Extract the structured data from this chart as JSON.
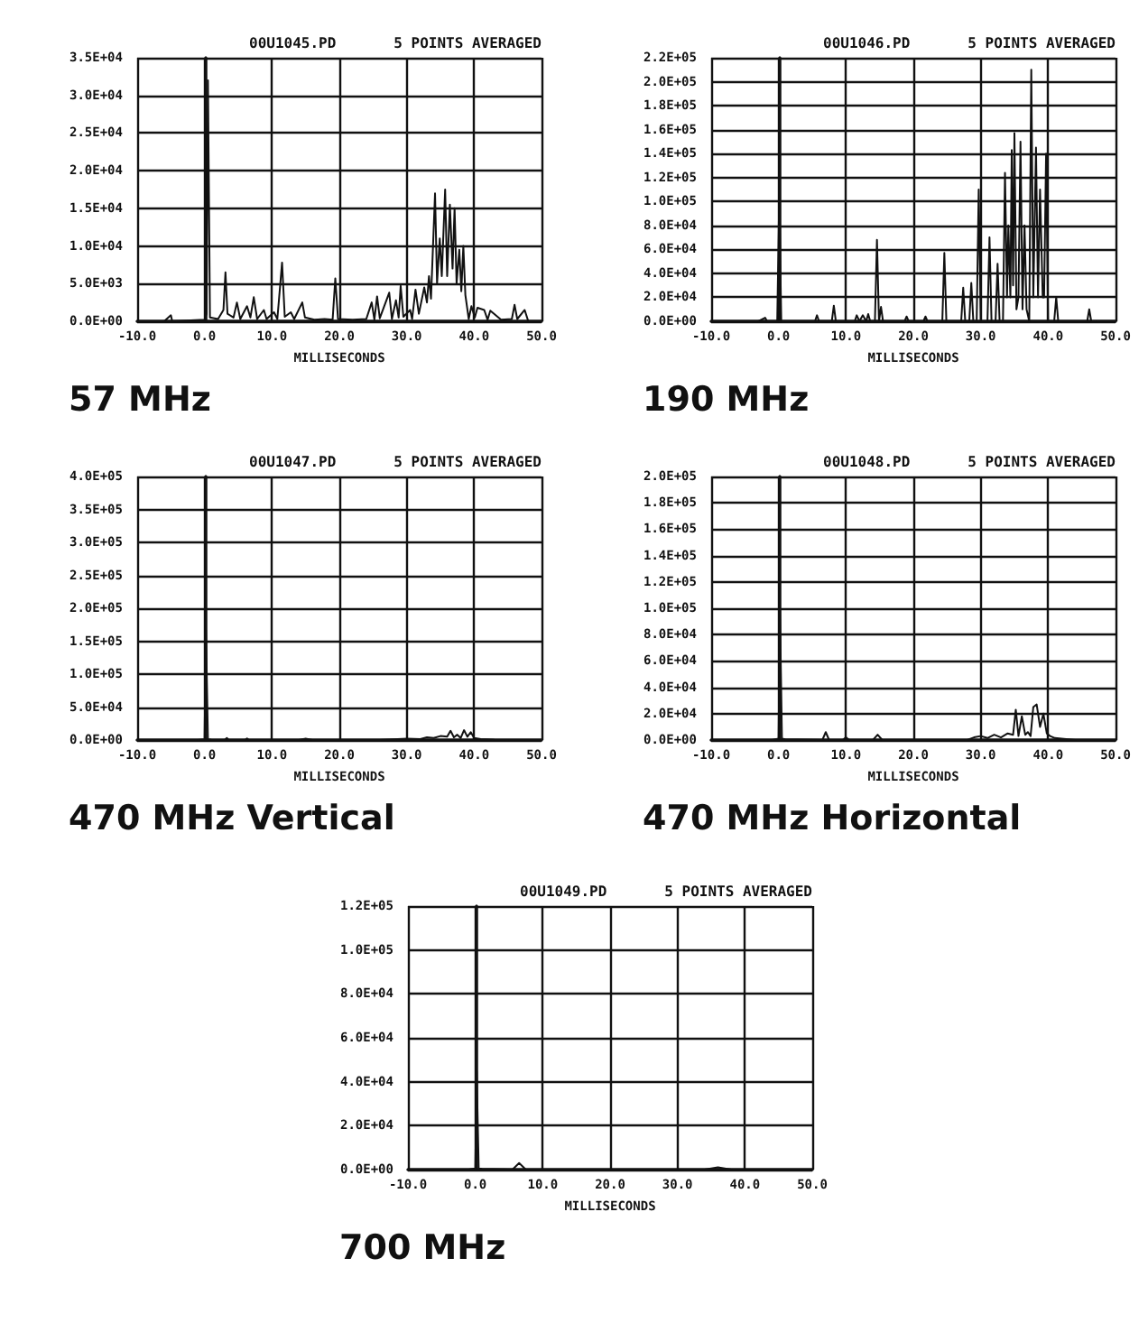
{
  "chart_data": [
    {
      "type": "line",
      "title": "00U1045.PD",
      "subtitle": "5 POINTS AVERAGED",
      "xlabel": "MILLISECONDS",
      "annotations": [
        "57 MHz"
      ],
      "grid": true,
      "marker": "none",
      "line_style": "solid",
      "xlim": [
        -10,
        50
      ],
      "xticks": [
        {
          "value": -10,
          "label": "-10.0"
        },
        {
          "value": 0,
          "label": "0.0"
        },
        {
          "value": 10,
          "label": "10.0"
        },
        {
          "value": 20,
          "label": "20.0"
        },
        {
          "value": 30,
          "label": "30.0"
        },
        {
          "value": 40,
          "label": "40.0"
        },
        {
          "value": 50,
          "label": "50.0"
        }
      ],
      "ylim": [
        0,
        35000
      ],
      "yticks": [
        {
          "value": 0,
          "label": "0.0E+00"
        },
        {
          "value": 5000,
          "label": "5.0E+03"
        },
        {
          "value": 10000,
          "label": "1.0E+04"
        },
        {
          "value": 15000,
          "label": "1.5E+04"
        },
        {
          "value": 20000,
          "label": "2.0E+04"
        },
        {
          "value": 25000,
          "label": "2.5E+04"
        },
        {
          "value": 30000,
          "label": "3.0E+04"
        },
        {
          "value": 35000,
          "label": "3.5E+04"
        }
      ],
      "series": [
        {
          "color": "#111111",
          "x": [
            -6,
            -5,
            -4.8,
            0,
            0.3,
            0.5,
            0.8,
            2,
            2.8,
            3.1,
            3.4,
            4.3,
            4.8,
            5.3,
            6.3,
            6.8,
            7.3,
            7.8,
            8.8,
            9.2,
            10.3,
            10.8,
            11.5,
            11.9,
            12.8,
            13.3,
            14.5,
            14.9,
            16.3,
            17.8,
            19,
            19.4,
            19.8,
            22,
            24,
            24.8,
            25.2,
            25.6,
            26,
            27.4,
            27.8,
            28.4,
            28.8,
            29.1,
            29.5,
            30.5,
            30.8,
            31.3,
            31.8,
            32.6,
            33,
            33.3,
            33.6,
            34.2,
            34.5,
            34.9,
            35.2,
            35.7,
            36,
            36.4,
            36.8,
            37.1,
            37.4,
            37.8,
            38.1,
            38.4,
            38.7,
            39.2,
            39.6,
            40.1,
            40.5,
            41.5,
            42,
            42.4,
            44,
            45.6,
            46,
            46.4,
            47.5,
            48
          ],
          "values": [
            0,
            800,
            0,
            200,
            1000,
            32000,
            500,
            300,
            1500,
            6500,
            1000,
            500,
            2500,
            300,
            2000,
            500,
            3200,
            300,
            1500,
            300,
            1200,
            300,
            7800,
            600,
            1200,
            300,
            2500,
            500,
            200,
            300,
            200,
            5700,
            300,
            200,
            300,
            2500,
            200,
            3300,
            400,
            3800,
            300,
            2800,
            500,
            4700,
            600,
            1500,
            300,
            4200,
            1000,
            4500,
            2500,
            6000,
            3000,
            17000,
            5000,
            11000,
            6000,
            17500,
            6000,
            15500,
            7000,
            15000,
            5000,
            9500,
            4000,
            10000,
            3500,
            300,
            2000,
            500,
            1800,
            1500,
            200,
            1400,
            200,
            300,
            2200,
            300,
            1500,
            100
          ]
        }
      ]
    },
    {
      "type": "line",
      "title": "00U1046.PD",
      "subtitle": "5 POINTS AVERAGED",
      "xlabel": "MILLISECONDS",
      "annotations": [
        "190 MHz"
      ],
      "grid": true,
      "marker": "none",
      "line_style": "solid",
      "xlim": [
        -10,
        50
      ],
      "xticks": [
        {
          "value": -10,
          "label": "-10.0"
        },
        {
          "value": 0,
          "label": "0.0"
        },
        {
          "value": 10,
          "label": "10.0"
        },
        {
          "value": 20,
          "label": "20.0"
        },
        {
          "value": 30,
          "label": "30.0"
        },
        {
          "value": 40,
          "label": "40.0"
        },
        {
          "value": 50,
          "label": "50.0"
        }
      ],
      "ylim": [
        0,
        220000
      ],
      "yticks": [
        {
          "value": 0,
          "label": "0.0E+00"
        },
        {
          "value": 20000,
          "label": "2.0E+04"
        },
        {
          "value": 40000,
          "label": "4.0E+04"
        },
        {
          "value": 60000,
          "label": "6.0E+04"
        },
        {
          "value": 80000,
          "label": "8.0E+04"
        },
        {
          "value": 100000,
          "label": "1.0E+05"
        },
        {
          "value": 120000,
          "label": "1.2E+05"
        },
        {
          "value": 140000,
          "label": "1.4E+05"
        },
        {
          "value": 160000,
          "label": "1.6E+05"
        },
        {
          "value": 180000,
          "label": "1.8E+05"
        },
        {
          "value": 200000,
          "label": "2.0E+05"
        },
        {
          "value": 220000,
          "label": "2.2E+05"
        }
      ],
      "series": [
        {
          "color": "#111111",
          "x": [
            -3,
            -2,
            -1.7,
            -0.2,
            0.1,
            0.4,
            5.4,
            5.7,
            6,
            7.9,
            8.2,
            8.5,
            11.3,
            11.6,
            12,
            12.5,
            13,
            13.3,
            13.6,
            14.3,
            14.6,
            14.9,
            15.2,
            15.5,
            18.7,
            19,
            19.3,
            21.5,
            21.8,
            22.1,
            24.3,
            24.6,
            24.9,
            27.1,
            27.4,
            27.7,
            28.3,
            28.6,
            28.9,
            29.4,
            29.7,
            30,
            31,
            31.3,
            31.6,
            32.2,
            32.5,
            32.8,
            33.3,
            33.6,
            33.9,
            34.1,
            34.4,
            34.6,
            34.8,
            35,
            35.3,
            35.6,
            35.9,
            36.2,
            36.5,
            36.8,
            37.2,
            37.5,
            37.8,
            38.2,
            38.5,
            38.8,
            39.2,
            39.4,
            39.7,
            40,
            40.9,
            41.2,
            41.5,
            45.8,
            46.1,
            46.4,
            47
          ],
          "values": [
            0,
            3000,
            0,
            0,
            103000,
            0,
            0,
            5000,
            0,
            0,
            13000,
            0,
            0,
            5000,
            0,
            5000,
            0,
            6000,
            0,
            0,
            68000,
            0,
            12000,
            0,
            0,
            4000,
            0,
            0,
            4000,
            0,
            0,
            57000,
            0,
            0,
            28000,
            0,
            0,
            32000,
            0,
            0,
            110000,
            0,
            0,
            70000,
            0,
            0,
            48000,
            0,
            0,
            124000,
            20000,
            80000,
            20000,
            143000,
            30000,
            157000,
            10000,
            20000,
            150000,
            10000,
            80000,
            10000,
            0,
            210000,
            20000,
            145000,
            20000,
            110000,
            20000,
            20000,
            140000,
            0,
            0,
            20000,
            0,
            0,
            10000,
            0,
            0
          ]
        }
      ]
    },
    {
      "type": "line",
      "title": "00U1047.PD",
      "subtitle": "5 POINTS AVERAGED",
      "xlabel": "MILLISECONDS",
      "annotations": [
        "470 MHz Vertical"
      ],
      "grid": true,
      "marker": "none",
      "line_style": "solid",
      "xlim": [
        -10,
        50
      ],
      "xticks": [
        {
          "value": -10,
          "label": "-10.0"
        },
        {
          "value": 0,
          "label": "0.0"
        },
        {
          "value": 10,
          "label": "10.0"
        },
        {
          "value": 20,
          "label": "20.0"
        },
        {
          "value": 30,
          "label": "30.0"
        },
        {
          "value": 40,
          "label": "40.0"
        },
        {
          "value": 50,
          "label": "50.0"
        }
      ],
      "ylim": [
        0,
        400000
      ],
      "yticks": [
        {
          "value": 0,
          "label": "0.0E+00"
        },
        {
          "value": 50000,
          "label": "5.0E+04"
        },
        {
          "value": 100000,
          "label": "1.0E+05"
        },
        {
          "value": 150000,
          "label": "1.5E+05"
        },
        {
          "value": 200000,
          "label": "2.0E+05"
        },
        {
          "value": 250000,
          "label": "2.5E+05"
        },
        {
          "value": 300000,
          "label": "3.0E+05"
        },
        {
          "value": 350000,
          "label": "3.5E+05"
        },
        {
          "value": 400000,
          "label": "4.0E+05"
        }
      ],
      "series": [
        {
          "color": "#111111",
          "x": [
            -1,
            0,
            0.2,
            0.5,
            1,
            3,
            3.3,
            3.6,
            6,
            6.3,
            6.6,
            14,
            15,
            16,
            20,
            26,
            28,
            30,
            32,
            33,
            34,
            35,
            36,
            36.5,
            37,
            37.5,
            38,
            38.5,
            39,
            39.5,
            40,
            41,
            43,
            45
          ],
          "values": [
            0,
            1000,
            167000,
            1000,
            500,
            0,
            3000,
            0,
            0,
            2500,
            0,
            0,
            2000,
            0,
            0,
            0,
            1000,
            2000,
            1500,
            4000,
            3000,
            6000,
            5000,
            14000,
            4000,
            8000,
            3000,
            15000,
            5000,
            12000,
            3000,
            1500,
            500,
            0
          ]
        }
      ]
    },
    {
      "type": "line",
      "title": "00U1048.PD",
      "subtitle": "5 POINTS AVERAGED",
      "xlabel": "MILLISECONDS",
      "annotations": [
        "470 MHz Horizontal"
      ],
      "grid": true,
      "marker": "none",
      "line_style": "solid",
      "xlim": [
        -10,
        50
      ],
      "xticks": [
        {
          "value": -10,
          "label": "-10.0"
        },
        {
          "value": 0,
          "label": "0.0"
        },
        {
          "value": 10,
          "label": "10.0"
        },
        {
          "value": 20,
          "label": "20.0"
        },
        {
          "value": 30,
          "label": "30.0"
        },
        {
          "value": 40,
          "label": "40.0"
        },
        {
          "value": 50,
          "label": "50.0"
        }
      ],
      "ylim": [
        0,
        200000
      ],
      "yticks": [
        {
          "value": 0,
          "label": "0.0E+00"
        },
        {
          "value": 20000,
          "label": "2.0E+04"
        },
        {
          "value": 40000,
          "label": "4.0E+04"
        },
        {
          "value": 60000,
          "label": "6.0E+04"
        },
        {
          "value": 80000,
          "label": "8.0E+04"
        },
        {
          "value": 100000,
          "label": "1.0E+05"
        },
        {
          "value": 120000,
          "label": "1.2E+05"
        },
        {
          "value": 140000,
          "label": "1.4E+05"
        },
        {
          "value": 160000,
          "label": "1.6E+05"
        },
        {
          "value": 180000,
          "label": "1.8E+05"
        },
        {
          "value": 200000,
          "label": "2.0E+05"
        }
      ],
      "series": [
        {
          "color": "#111111",
          "x": [
            -1,
            0,
            0.2,
            0.5,
            1,
            6.5,
            7,
            7.5,
            9.5,
            10,
            10.5,
            14,
            14.7,
            15.4,
            28,
            29,
            30,
            31,
            32,
            33,
            34,
            34.8,
            35.2,
            35.6,
            36.1,
            36.6,
            37,
            37.4,
            37.8,
            38.3,
            38.8,
            39.3,
            39.8,
            40.3,
            41,
            42,
            43,
            44
          ],
          "values": [
            0,
            1000,
            100000,
            1000,
            500,
            0,
            6000,
            0,
            0,
            2000,
            0,
            0,
            4000,
            0,
            0,
            2000,
            3000,
            1500,
            4000,
            2000,
            5000,
            4000,
            23000,
            3000,
            18000,
            4000,
            6000,
            3000,
            25000,
            27000,
            10000,
            20000,
            5000,
            3000,
            1500,
            1000,
            500,
            0
          ]
        }
      ]
    },
    {
      "type": "line",
      "title": "00U1049.PD",
      "subtitle": "5 POINTS AVERAGED",
      "xlabel": "MILLISECONDS",
      "annotations": [
        "700 MHz"
      ],
      "grid": true,
      "marker": "none",
      "line_style": "solid",
      "xlim": [
        -10,
        50
      ],
      "xticks": [
        {
          "value": -10,
          "label": "-10.0"
        },
        {
          "value": 0,
          "label": "0.0"
        },
        {
          "value": 10,
          "label": "10.0"
        },
        {
          "value": 20,
          "label": "20.0"
        },
        {
          "value": 30,
          "label": "30.0"
        },
        {
          "value": 40,
          "label": "40.0"
        },
        {
          "value": 50,
          "label": "50.0"
        }
      ],
      "ylim": [
        0,
        120000
      ],
      "yticks": [
        {
          "value": 0,
          "label": "0.0E+00"
        },
        {
          "value": 20000,
          "label": "2.0E+04"
        },
        {
          "value": 40000,
          "label": "4.0E+04"
        },
        {
          "value": 60000,
          "label": "6.0E+04"
        },
        {
          "value": 80000,
          "label": "8.0E+04"
        },
        {
          "value": 100000,
          "label": "1.0E+05"
        },
        {
          "value": 120000,
          "label": "1.2E+05"
        }
      ],
      "series": [
        {
          "color": "#111111",
          "x": [
            -1,
            0,
            0.2,
            0.5,
            1,
            5.5,
            6.5,
            7.5,
            34,
            35,
            36,
            37,
            38
          ],
          "values": [
            0,
            500,
            45000,
            500,
            300,
            0,
            3000,
            0,
            0,
            500,
            1000,
            500,
            0
          ]
        }
      ]
    }
  ]
}
